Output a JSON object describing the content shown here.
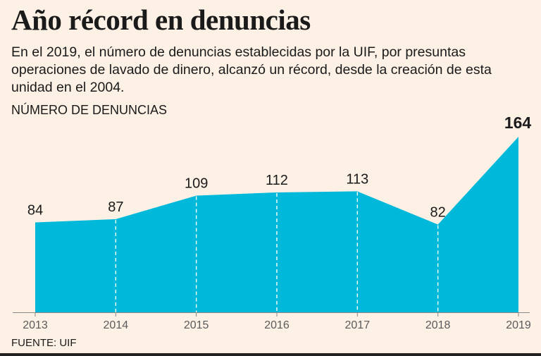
{
  "header": {
    "title": "Año récord en denuncias",
    "subtitle": "En el 2019, el número de denuncias establecidas por la UIF, por presuntas operaciones de lavado de dinero, alcanzó un récord, desde la creación de esta unidad en el 2004."
  },
  "source": "FUENTE: UIF",
  "colors": {
    "area": "#00b8d9",
    "background": "#fdf1e6",
    "dash": "#ffffff",
    "axis": "#888888"
  },
  "chart_data": {
    "type": "area",
    "title": "Año récord en denuncias",
    "ylabel": "NÚMERO DE DENUNCIAS",
    "xlabel": "",
    "x": [
      "2013",
      "2014",
      "2015",
      "2016",
      "2017",
      "2018",
      "2019"
    ],
    "values": [
      84,
      87,
      109,
      112,
      113,
      82,
      164
    ],
    "value_labels": [
      "84",
      "87",
      "109",
      "112",
      "113",
      "82",
      "164"
    ],
    "ylim": [
      0,
      164
    ],
    "grid": false,
    "legend": "none"
  }
}
